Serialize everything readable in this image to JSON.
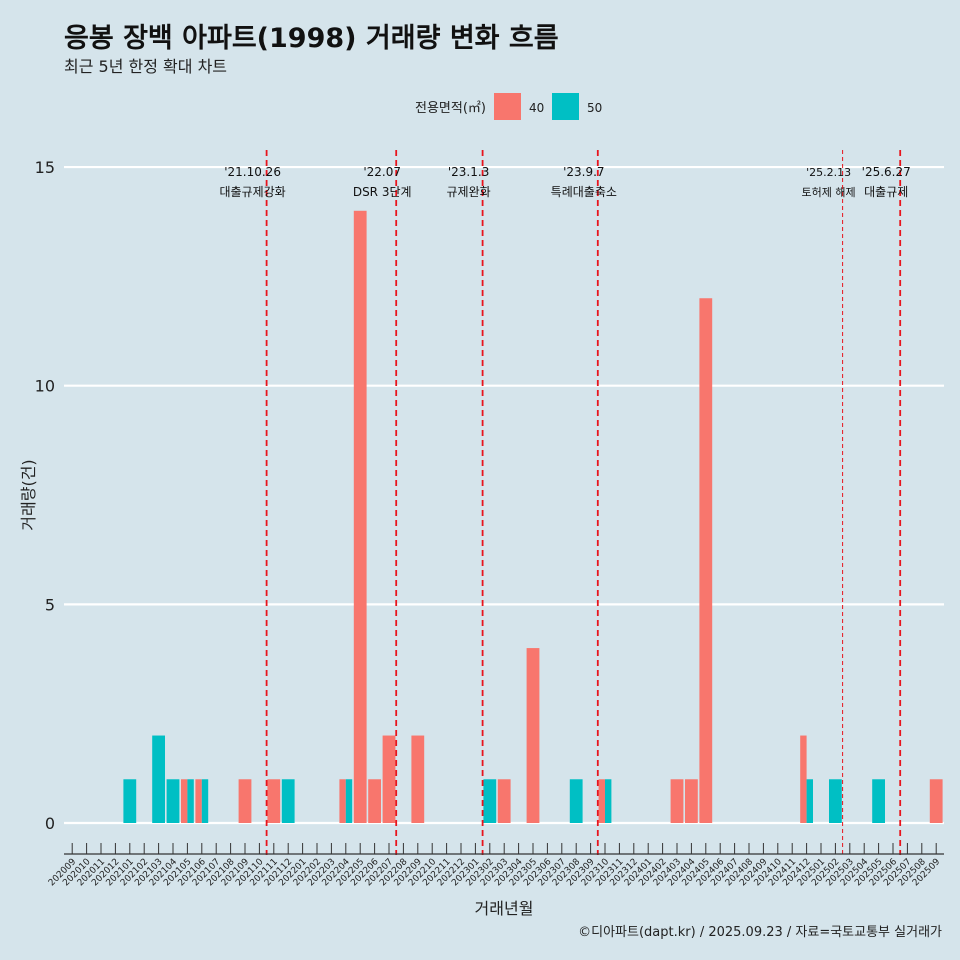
{
  "title": "응봉 장백 아파트(1998) 거래량 변화 흐름",
  "subtitle": "최근 5년 한정 확대 차트",
  "caption": "©디아파트(dapt.kr) / 2025.09.23 / 자료=국토교통부 실거래가",
  "colors": {
    "s40": "#f8766d",
    "s50": "#00bfc4",
    "background": "#d5e4eb",
    "grid": "#ffffff",
    "event_line": "#e8141c"
  },
  "chart_data": {
    "type": "bar",
    "title": "응봉 장백 아파트(1998) 거래량 변화 흐름",
    "subtitle": "최근 5년 한정 확대 차트",
    "xlabel": "거래년월",
    "ylabel": "거래량(건)",
    "ylim": [
      0,
      15
    ],
    "yticks": [
      0,
      5,
      10,
      15
    ],
    "grid": true,
    "legend": {
      "title": "전용면적(㎡)",
      "position": "top",
      "entries": [
        "40",
        "50"
      ]
    },
    "categories": [
      "202009",
      "202010",
      "202011",
      "202012",
      "202101",
      "202102",
      "202103",
      "202104",
      "202105",
      "202106",
      "202107",
      "202108",
      "202109",
      "202110",
      "202111",
      "202112",
      "202201",
      "202202",
      "202203",
      "202204",
      "202205",
      "202206",
      "202207",
      "202208",
      "202209",
      "202210",
      "202211",
      "202212",
      "202301",
      "202302",
      "202303",
      "202304",
      "202305",
      "202306",
      "202307",
      "202308",
      "202309",
      "202310",
      "202311",
      "202312",
      "202401",
      "202402",
      "202403",
      "202404",
      "202405",
      "202406",
      "202407",
      "202408",
      "202409",
      "202410",
      "202411",
      "202412",
      "202501",
      "202502",
      "202503",
      "202504",
      "202505",
      "202506",
      "202507",
      "202508",
      "202509"
    ],
    "series": [
      {
        "name": "40",
        "values": [
          0,
          0,
          0,
          0,
          0,
          0,
          0,
          0,
          1,
          1,
          0,
          0,
          1,
          0,
          1,
          0,
          0,
          0,
          0,
          1,
          14,
          1,
          2,
          0,
          2,
          0,
          0,
          0,
          0,
          0,
          1,
          0,
          4,
          0,
          0,
          0,
          0,
          1,
          0,
          0,
          0,
          0,
          1,
          1,
          12,
          0,
          0,
          0,
          0,
          0,
          0,
          2,
          0,
          0,
          0,
          0,
          0,
          0,
          0,
          0,
          1
        ]
      },
      {
        "name": "50",
        "values": [
          0,
          0,
          0,
          0,
          1,
          0,
          2,
          1,
          1,
          1,
          0,
          0,
          0,
          0,
          0,
          1,
          0,
          0,
          0,
          1,
          0,
          0,
          0,
          0,
          0,
          0,
          0,
          0,
          0,
          1,
          0,
          0,
          0,
          0,
          0,
          1,
          0,
          1,
          0,
          0,
          0,
          0,
          0,
          0,
          0,
          0,
          0,
          0,
          0,
          0,
          0,
          1,
          0,
          1,
          0,
          0,
          1,
          0,
          0,
          0,
          0
        ]
      }
    ],
    "annotations": [
      {
        "date": "'21.10.26",
        "label": "대출규제강화",
        "month": "202110"
      },
      {
        "date": "'22.07",
        "label": "DSR 3단계",
        "month": "202207"
      },
      {
        "date": "'23.1.3",
        "label": "규제완화",
        "month": "202301"
      },
      {
        "date": "'23.9.7",
        "label": "특례대출축소",
        "month": "202309"
      },
      {
        "date": "'25.2.13",
        "label": "토허제 해제",
        "month": "202502"
      },
      {
        "date": "'25.6.27",
        "label": "대출규제",
        "month": "202506"
      }
    ]
  }
}
